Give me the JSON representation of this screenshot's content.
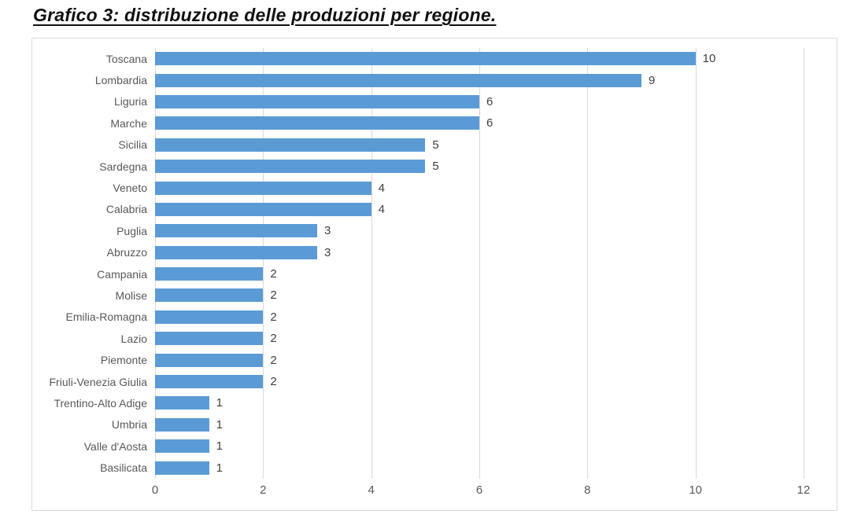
{
  "chart_data": {
    "type": "bar",
    "orientation": "horizontal",
    "title": "Grafico 3: distribuzione delle produzioni per regione.",
    "categories": [
      "Toscana",
      "Lombardia",
      "Liguria",
      "Marche",
      "Sicilia",
      "Sardegna",
      "Veneto",
      "Calabria",
      "Puglia",
      "Abruzzo",
      "Campania",
      "Molise",
      "Emilia-Romagna",
      "Lazio",
      "Piemonte",
      "Friuli-Venezia Giulia",
      "Trentino-Alto Adige",
      "Umbria",
      "Valle d'Aosta",
      "Basilicata"
    ],
    "values": [
      10,
      9,
      6,
      6,
      5,
      5,
      4,
      4,
      3,
      3,
      2,
      2,
      2,
      2,
      2,
      2,
      1,
      1,
      1,
      1
    ],
    "data_labels": true,
    "xticks": [
      0,
      2,
      4,
      6,
      8,
      10,
      12
    ],
    "xlim": [
      0,
      12
    ],
    "grid": true,
    "legend": false,
    "bar_color": "#5b9bd5",
    "gridline_color": "#d9d9d9",
    "category_label_color": "#595959",
    "value_label_color": "#404040"
  }
}
